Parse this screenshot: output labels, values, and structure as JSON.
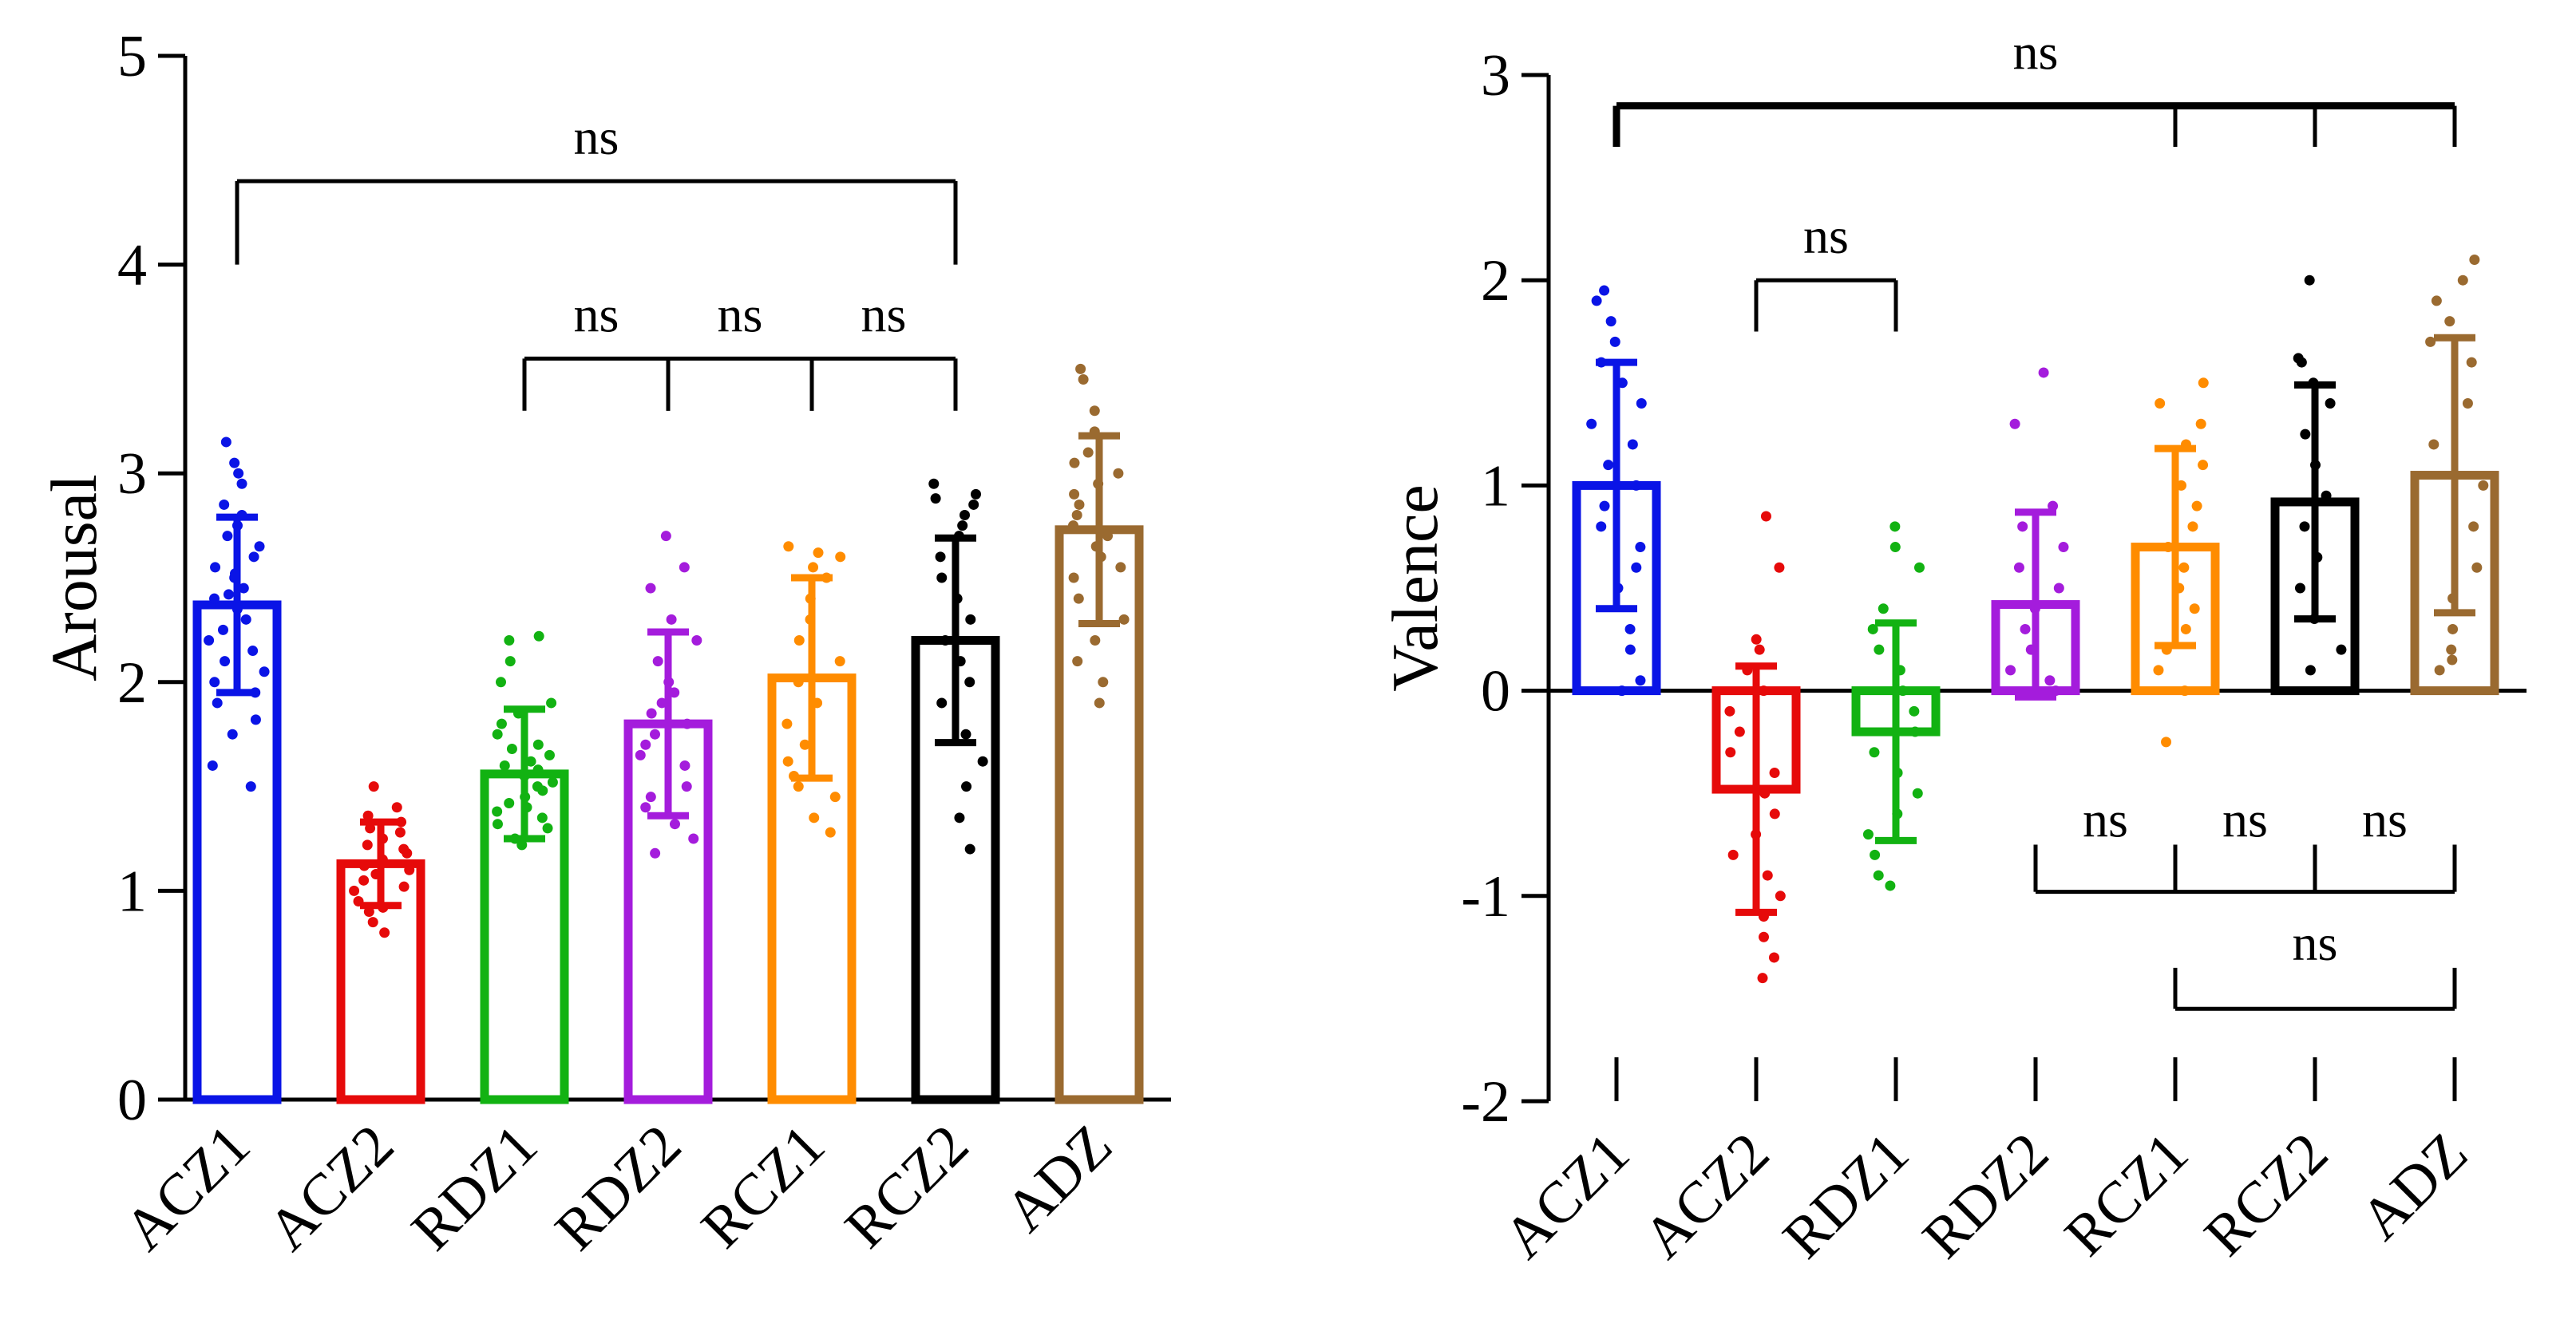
{
  "chart_data": [
    {
      "type": "bar",
      "ylabel": "Arousal",
      "ylim": [
        0,
        5
      ],
      "yticks": [
        "0",
        "1",
        "2",
        "3",
        "4",
        "5"
      ],
      "categories": [
        "ACZ1",
        "ACZ2",
        "RDZ1",
        "RDZ2",
        "RCZ1",
        "RCZ2",
        "ADZ"
      ],
      "values": [
        2.37,
        1.13,
        1.56,
        1.8,
        2.02,
        2.2,
        2.73
      ],
      "errors": [
        0.42,
        0.2,
        0.31,
        0.44,
        0.48,
        0.49,
        0.45
      ],
      "colors": [
        "#0a14e6",
        "#e60a0a",
        "#12b212",
        "#a41cdc",
        "#ff8c00",
        "#000000",
        "#9a6a30"
      ],
      "points": [
        [
          1.5,
          1.6,
          1.75,
          1.82,
          1.9,
          1.95,
          2.0,
          2.05,
          2.1,
          2.15,
          2.2,
          2.25,
          2.3,
          2.35,
          2.4,
          2.42,
          2.45,
          2.5,
          2.52,
          2.55,
          2.6,
          2.65,
          2.7,
          2.75,
          2.8,
          2.85,
          2.95,
          3.0,
          3.05,
          3.15
        ],
        [
          0.8,
          0.85,
          0.9,
          0.92,
          0.95,
          1.0,
          1.02,
          1.05,
          1.08,
          1.1,
          1.12,
          1.15,
          1.18,
          1.2,
          1.22,
          1.25,
          1.28,
          1.3,
          1.33,
          1.36,
          1.4,
          1.5
        ],
        [
          1.22,
          1.25,
          1.3,
          1.32,
          1.35,
          1.38,
          1.4,
          1.42,
          1.45,
          1.48,
          1.5,
          1.52,
          1.55,
          1.58,
          1.6,
          1.62,
          1.65,
          1.68,
          1.7,
          1.75,
          1.8,
          1.85,
          1.9,
          2.0,
          2.1,
          2.2,
          2.22
        ],
        [
          1.18,
          1.25,
          1.32,
          1.4,
          1.45,
          1.5,
          1.6,
          1.65,
          1.7,
          1.75,
          1.8,
          1.85,
          1.9,
          1.95,
          2.0,
          2.1,
          2.2,
          2.3,
          2.45,
          2.55,
          2.7
        ],
        [
          1.28,
          1.35,
          1.45,
          1.5,
          1.55,
          1.62,
          1.7,
          1.8,
          1.9,
          2.0,
          2.1,
          2.2,
          2.3,
          2.4,
          2.5,
          2.55,
          2.6,
          2.62,
          2.65
        ],
        [
          1.2,
          1.35,
          1.5,
          1.62,
          1.75,
          1.9,
          2.0,
          2.1,
          2.2,
          2.3,
          2.4,
          2.5,
          2.6,
          2.7,
          2.75,
          2.8,
          2.85,
          2.88,
          2.9,
          2.95
        ],
        [
          1.9,
          2.0,
          2.1,
          2.2,
          2.3,
          2.4,
          2.5,
          2.55,
          2.6,
          2.65,
          2.7,
          2.75,
          2.8,
          2.85,
          2.9,
          2.95,
          3.0,
          3.05,
          3.1,
          3.2,
          3.3,
          3.45,
          3.5
        ]
      ],
      "annotations": [
        {
          "label": "ns",
          "from": 0,
          "to": 5,
          "y": 4.4,
          "y_end": 4.0
        },
        {
          "label": "ns",
          "from": 2,
          "to": 3,
          "y": 3.55,
          "y_end": 3.3
        },
        {
          "label": "ns",
          "from": 3,
          "to": 4,
          "y": 3.55,
          "y_end": 3.3
        },
        {
          "label": "ns",
          "from": 4,
          "to": 5,
          "y": 3.55,
          "y_end": 3.3
        }
      ]
    },
    {
      "type": "bar",
      "ylabel": "Valence",
      "ylim": [
        -2,
        3
      ],
      "yticks": [
        "-2",
        "-1",
        "0",
        "1",
        "2",
        "3"
      ],
      "categories": [
        "ACZ1",
        "ACZ2",
        "RDZ1",
        "RDZ2",
        "RCZ1",
        "RCZ2",
        "ADZ"
      ],
      "values": [
        1.0,
        -0.48,
        -0.2,
        0.42,
        0.7,
        0.92,
        1.05
      ],
      "errors": [
        0.6,
        0.6,
        0.53,
        0.45,
        0.48,
        0.57,
        0.67
      ],
      "colors": [
        "#0a14e6",
        "#e60a0a",
        "#12b212",
        "#a41cdc",
        "#ff8c00",
        "#000000",
        "#9a6a30"
      ],
      "points": [
        [
          0.0,
          0.05,
          0.2,
          0.3,
          0.5,
          0.6,
          0.7,
          0.8,
          0.9,
          1.0,
          1.1,
          1.2,
          1.3,
          1.4,
          1.5,
          1.6,
          1.7,
          1.8,
          1.9,
          1.95
        ],
        [
          -1.4,
          -1.3,
          -1.2,
          -1.1,
          -1.0,
          -0.9,
          -0.8,
          -0.7,
          -0.6,
          -0.5,
          -0.4,
          -0.3,
          -0.2,
          -0.1,
          0.0,
          0.1,
          0.2,
          0.25,
          0.6,
          0.85
        ],
        [
          -0.95,
          -0.9,
          -0.8,
          -0.7,
          -0.6,
          -0.5,
          -0.4,
          -0.3,
          -0.2,
          -0.1,
          0.0,
          0.1,
          0.2,
          0.3,
          0.4,
          0.6,
          0.7,
          0.8
        ],
        [
          0.0,
          0.05,
          0.1,
          0.2,
          0.3,
          0.4,
          0.5,
          0.6,
          0.7,
          0.8,
          0.9,
          1.3,
          1.55
        ],
        [
          -0.25,
          0.0,
          0.1,
          0.2,
          0.3,
          0.4,
          0.5,
          0.6,
          0.7,
          0.8,
          0.9,
          1.0,
          1.1,
          1.2,
          1.3,
          1.4,
          1.5
        ],
        [
          0.1,
          0.2,
          0.35,
          0.5,
          0.65,
          0.8,
          0.95,
          1.1,
          1.25,
          1.4,
          1.5,
          1.6,
          1.62,
          2.0
        ],
        [
          0.1,
          0.15,
          0.2,
          0.3,
          0.45,
          0.6,
          0.8,
          1.0,
          1.2,
          1.4,
          1.6,
          1.7,
          1.8,
          1.9,
          2.0,
          2.1
        ]
      ],
      "annotations": [
        {
          "label": "ns",
          "from": 0,
          "to": 6,
          "y": 2.85,
          "y_end": 2.65,
          "extra_drops": [
            4,
            5
          ],
          "bold": true,
          "label_y": 3.1
        },
        {
          "label": "ns",
          "from": 1,
          "to": 2,
          "y": 2.0,
          "y_end": 1.75
        },
        {
          "label": "ns",
          "from": 3,
          "to": 4,
          "y": -0.98,
          "y_end": -0.75,
          "inverted": true
        },
        {
          "label": "ns",
          "from": 4,
          "to": 5,
          "y": -0.98,
          "y_end": -0.75,
          "inverted": true
        },
        {
          "label": "ns",
          "from": 5,
          "to": 6,
          "y": -0.98,
          "y_end": -0.75,
          "inverted": true
        },
        {
          "label": "ns",
          "from": 4,
          "to": 6,
          "y": -1.55,
          "y_end": -1.35,
          "inverted": true
        }
      ]
    }
  ]
}
